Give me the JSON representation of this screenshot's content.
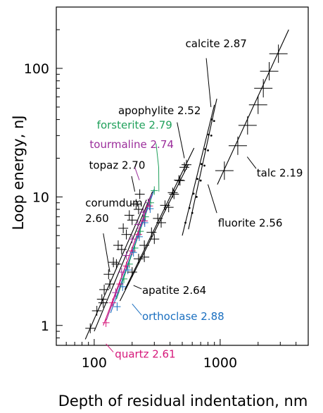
{
  "chart_data": {
    "type": "scatter",
    "title": "",
    "xlabel": "Depth of residual indentation, nm",
    "ylabel": "Loop energy, nJ",
    "x_scale": "log",
    "y_scale": "log",
    "xlim": [
      50,
      5000
    ],
    "ylim": [
      0.7,
      300
    ],
    "x_ticks": [
      100,
      1000
    ],
    "x_tick_labels": [
      "100",
      "1000"
    ],
    "y_ticks": [
      1,
      10,
      100
    ],
    "y_tick_labels": [
      "1",
      "10",
      "100"
    ],
    "grid": false,
    "legend": "none",
    "series": [
      {
        "name": "corumdum 2.60",
        "color": "#000000",
        "marker": "cross-large",
        "line": [
          [
            85,
            0.78
          ],
          [
            260,
            9.5
          ]
        ],
        "points": [
          [
            93,
            0.95
          ],
          [
            105,
            1.3
          ],
          [
            115,
            1.6
          ],
          [
            120,
            1.9
          ],
          [
            130,
            2.5
          ],
          [
            142,
            3.1
          ],
          [
            155,
            4.2
          ],
          [
            170,
            5.7
          ],
          [
            190,
            7.2
          ],
          [
            215,
            8.8
          ],
          [
            230,
            10.5
          ]
        ],
        "label": {
          "lines": [
            "corumdum",
            "2.60"
          ],
          "at": [
            85,
            8.4
          ],
          "leader": [
            [
              118,
              5.2
            ],
            [
              133,
              2.6
            ]
          ]
        }
      },
      {
        "name": "topaz 2.70",
        "color": "#000000",
        "marker": "cross-large",
        "line": [
          [
            100,
            0.9
          ],
          [
            290,
            11
          ]
        ],
        "points": [
          [
            118,
            1.5
          ],
          [
            133,
            2.1
          ],
          [
            150,
            3.0
          ],
          [
            165,
            3.9
          ],
          [
            180,
            5.1
          ],
          [
            200,
            6.6
          ],
          [
            225,
            8.0
          ]
        ],
        "label": {
          "lines": [
            "topaz 2.70"
          ],
          "at": [
            91,
            16.5
          ],
          "leader": [
            [
              198,
              14.5
            ],
            [
              210,
              11
            ]
          ]
        }
      },
      {
        "name": "tourmaline 2.74",
        "color": "#9b2d9b",
        "marker": "cross-small",
        "line": [
          [
            125,
            1.1
          ],
          [
            285,
            10.5
          ]
        ],
        "points": [
          [
            148,
            1.8
          ],
          [
            165,
            2.6
          ],
          [
            180,
            3.5
          ],
          [
            200,
            4.7
          ],
          [
            222,
            6.1
          ],
          [
            245,
            7.6
          ],
          [
            268,
            9.0
          ]
        ],
        "label": {
          "lines": [
            "tourmaline 2.74"
          ],
          "at": [
            92,
            24
          ],
          "leader": [
            [
              210,
              17
            ],
            [
              228,
              13.5
            ]
          ]
        }
      },
      {
        "name": "forsterite 2.79",
        "color": "#1fa05a",
        "marker": "cross-small",
        "line": [
          [
            150,
            1.6
          ],
          [
            300,
            11.5
          ]
        ],
        "points": [
          [
            172,
            2.3
          ],
          [
            190,
            3.0
          ],
          [
            210,
            4.0
          ],
          [
            232,
            5.4
          ],
          [
            255,
            7.0
          ],
          [
            280,
            9.0
          ],
          [
            300,
            11.2
          ]
        ],
        "label": {
          "lines": [
            "forsterite 2.79"
          ],
          "at": [
            105,
            34
          ],
          "leader": [
            [
              310,
              26
            ],
            [
              325,
              17
            ],
            [
              326,
              11
            ]
          ]
        }
      },
      {
        "name": "quartz 2.61",
        "color": "#d6187a",
        "marker": "cross-small",
        "line": [
          [
            118,
            1.0
          ],
          [
            290,
            10.5
          ]
        ],
        "points": [
          [
            124,
            1.05
          ],
          [
            140,
            1.5
          ],
          [
            160,
            2.1
          ],
          [
            180,
            2.9
          ],
          [
            200,
            3.8
          ],
          [
            225,
            5.1
          ],
          [
            250,
            6.5
          ],
          [
            275,
            8.5
          ]
        ],
        "label": {
          "lines": [
            "quartz 2.61"
          ],
          "at": [
            146,
            0.56
          ],
          "leader": [
            [
              142,
              0.62
            ],
            [
              124,
              0.72
            ]
          ]
        }
      },
      {
        "name": "orthoclase 2.88",
        "color": "#1a6fc0",
        "marker": "cross-small",
        "line": [
          [
            135,
            1.25
          ],
          [
            300,
            11.5
          ]
        ],
        "points": [
          [
            152,
            1.4
          ],
          [
            168,
            2.0
          ],
          [
            185,
            2.7
          ],
          [
            205,
            3.7
          ],
          [
            228,
            4.9
          ],
          [
            252,
            6.3
          ],
          [
            278,
            8.1
          ]
        ],
        "label": {
          "lines": [
            "orthoclase 2.88"
          ],
          "at": [
            240,
            1.1
          ],
          "leader": [
            [
              238,
              1.2
            ],
            [
              200,
              1.47
            ]
          ]
        }
      },
      {
        "name": "apatite 2.64",
        "color": "#000000",
        "marker": "cross-large",
        "line": [
          [
            160,
            1.55
          ],
          [
            560,
            18
          ]
        ],
        "points": [
          [
            200,
            2.6
          ],
          [
            225,
            3.3
          ],
          [
            250,
            4.2
          ],
          [
            285,
            5.3
          ],
          [
            320,
            6.8
          ],
          [
            365,
            8.6
          ],
          [
            420,
            10.8
          ],
          [
            470,
            13.5
          ],
          [
            520,
            17
          ]
        ],
        "label": {
          "lines": [
            "apatite 2.64"
          ],
          "at": [
            240,
            1.76
          ],
          "leader": [
            [
              238,
              1.92
            ],
            [
              205,
              2.05
            ]
          ]
        }
      },
      {
        "name": "apophylite 2.52",
        "color": "#000000",
        "marker": "cross-large",
        "line": [
          [
            175,
            1.9
          ],
          [
            620,
            24
          ]
        ],
        "points": [
          [
            250,
            3.4
          ],
          [
            300,
            4.7
          ],
          [
            340,
            6.3
          ],
          [
            390,
            8.3
          ],
          [
            430,
            10.5
          ],
          [
            480,
            13.4
          ],
          [
            540,
            17.8
          ]
        ],
        "label": {
          "lines": [
            "apophylite 2.52"
          ],
          "at": [
            155,
            44
          ],
          "leader": [
            [
              455,
              38
            ],
            [
              520,
              20
            ]
          ]
        }
      },
      {
        "name": "fluorite 2.56",
        "color": "#000000",
        "marker": "dot",
        "line": [
          [
            500,
            5.0
          ],
          [
            900,
            52
          ]
        ],
        "points": [
          [
            530,
            6.3
          ],
          [
            570,
            8.2
          ],
          [
            615,
            10.6
          ],
          [
            660,
            13.8
          ],
          [
            710,
            18
          ],
          [
            760,
            23.5
          ],
          [
            810,
            30.5
          ],
          [
            860,
            40
          ]
        ],
        "label": {
          "lines": [
            "fluorite 2.56"
          ],
          "at": [
            960,
            5.86
          ],
          "leader": [
            [
              940,
              7.5
            ],
            [
              800,
              12.5
            ]
          ]
        }
      },
      {
        "name": "calcite 2.87",
        "color": "#000000",
        "marker": "dot",
        "line": [
          [
            560,
            5.6
          ],
          [
            940,
            58
          ]
        ],
        "points": [
          [
            600,
            7.5
          ],
          [
            650,
            10
          ],
          [
            700,
            13.4
          ],
          [
            750,
            17.5
          ],
          [
            800,
            23
          ],
          [
            850,
            30
          ],
          [
            895,
            39
          ]
        ],
        "label": {
          "lines": [
            "calcite 2.87"
          ],
          "at": [
            530,
            146
          ],
          "leader": [
            [
              775,
              120
            ],
            [
              845,
              50
            ]
          ]
        }
      },
      {
        "name": "talc 2.19",
        "color": "#000000",
        "marker": "cross-xlarge",
        "line": [
          [
            950,
            12.5
          ],
          [
            3500,
            200
          ]
        ],
        "points": [
          [
            1080,
            16
          ],
          [
            1380,
            25
          ],
          [
            1650,
            36
          ],
          [
            2000,
            52
          ],
          [
            2200,
            70
          ],
          [
            2450,
            95
          ],
          [
            2900,
            130
          ]
        ],
        "label": {
          "lines": [
            "talc 2.19"
          ],
          "at": [
            1950,
            14.4
          ],
          "leader": [
            [
              1930,
              16.6
            ],
            [
              1640,
              20.5
            ]
          ]
        }
      }
    ]
  }
}
